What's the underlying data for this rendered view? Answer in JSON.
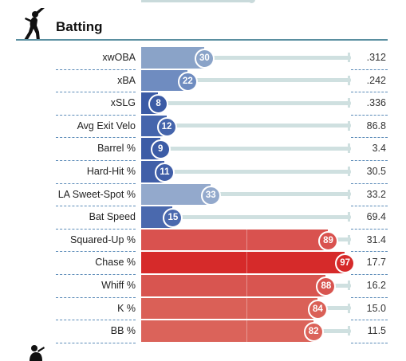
{
  "section": {
    "title": "Batting",
    "icon": "batter-silhouette-icon"
  },
  "colors": {
    "good_high": "#d62a2a",
    "bad_low": "#3b5ba5",
    "track": "#cfe0e0",
    "rule": "#5a8fa0"
  },
  "chart_data": {
    "type": "bar",
    "categories": [
      "xwOBA",
      "xBA",
      "xSLG",
      "Avg Exit Velo",
      "Barrel %",
      "Hard-Hit %",
      "LA Sweet-Spot %",
      "Bat Speed",
      "Squared-Up %",
      "Chase %",
      "Whiff %",
      "K %",
      "BB %"
    ],
    "percentiles": [
      30,
      22,
      8,
      12,
      9,
      11,
      33,
      15,
      89,
      97,
      88,
      84,
      82
    ],
    "values": [
      ".312",
      ".242",
      ".336",
      "86.8",
      "3.4",
      "30.5",
      "33.2",
      "69.4",
      "31.4",
      "17.7",
      "16.2",
      "15.0",
      "11.5"
    ],
    "percentile_range": [
      0,
      100
    ],
    "colors": [
      "#8aa3c8",
      "#6f8cc0",
      "#3b5ba5",
      "#4565ac",
      "#3c5ca6",
      "#415fa8",
      "#93a9cc",
      "#4a69ae",
      "#d9524f",
      "#d62a2a",
      "#d85550",
      "#da6057",
      "#db635a"
    ]
  }
}
